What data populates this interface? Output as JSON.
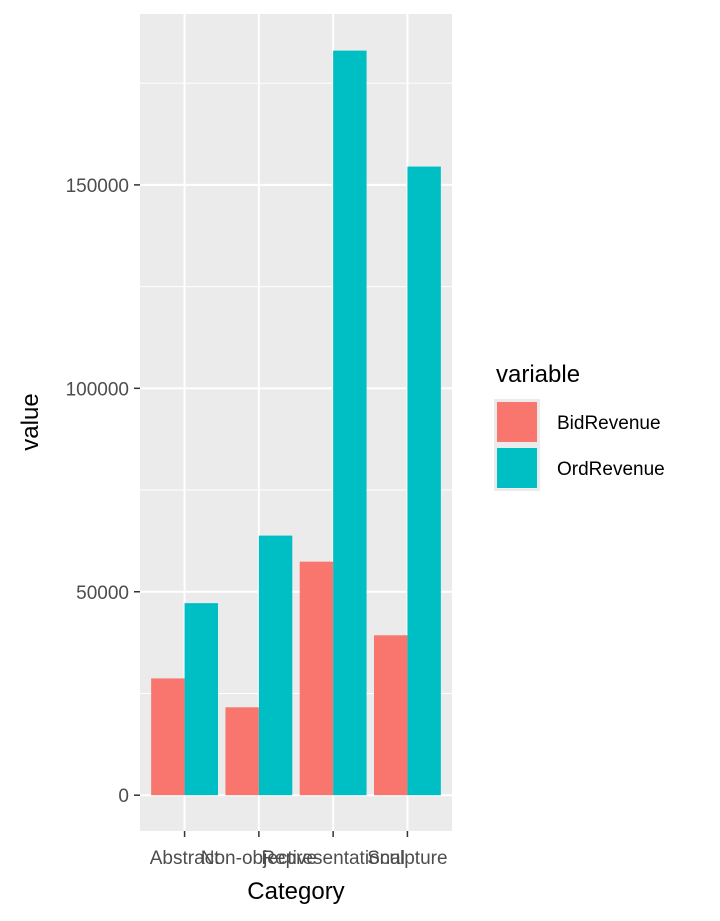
{
  "chart_data": {
    "type": "bar",
    "title": "",
    "xlabel": "Category",
    "ylabel": "value",
    "categories": [
      "Abstract",
      "Non-objective",
      "Representational",
      "Sculpture"
    ],
    "series": [
      {
        "name": "BidRevenue",
        "values": [
          28700,
          21600,
          57400,
          39300
        ]
      },
      {
        "name": "OrdRevenue",
        "values": [
          47200,
          63800,
          183000,
          154500
        ]
      }
    ],
    "ylim": [
      -8800,
      192000
    ],
    "yticks": [
      0,
      50000,
      100000,
      150000
    ],
    "ytick_labels": [
      "0",
      "50000",
      "100000",
      "150000"
    ],
    "legend": {
      "title": "variable",
      "placement": "right",
      "entries": [
        "BidRevenue",
        "OrdRevenue"
      ]
    },
    "grid": true,
    "colors": {
      "BidRevenue": "#F8766D",
      "OrdRevenue": "#00BFC4",
      "panel": "#EBEBEB",
      "grid": "#FFFFFF",
      "tick_text": "#4D4D4D",
      "tick_mark": "#333333"
    }
  }
}
